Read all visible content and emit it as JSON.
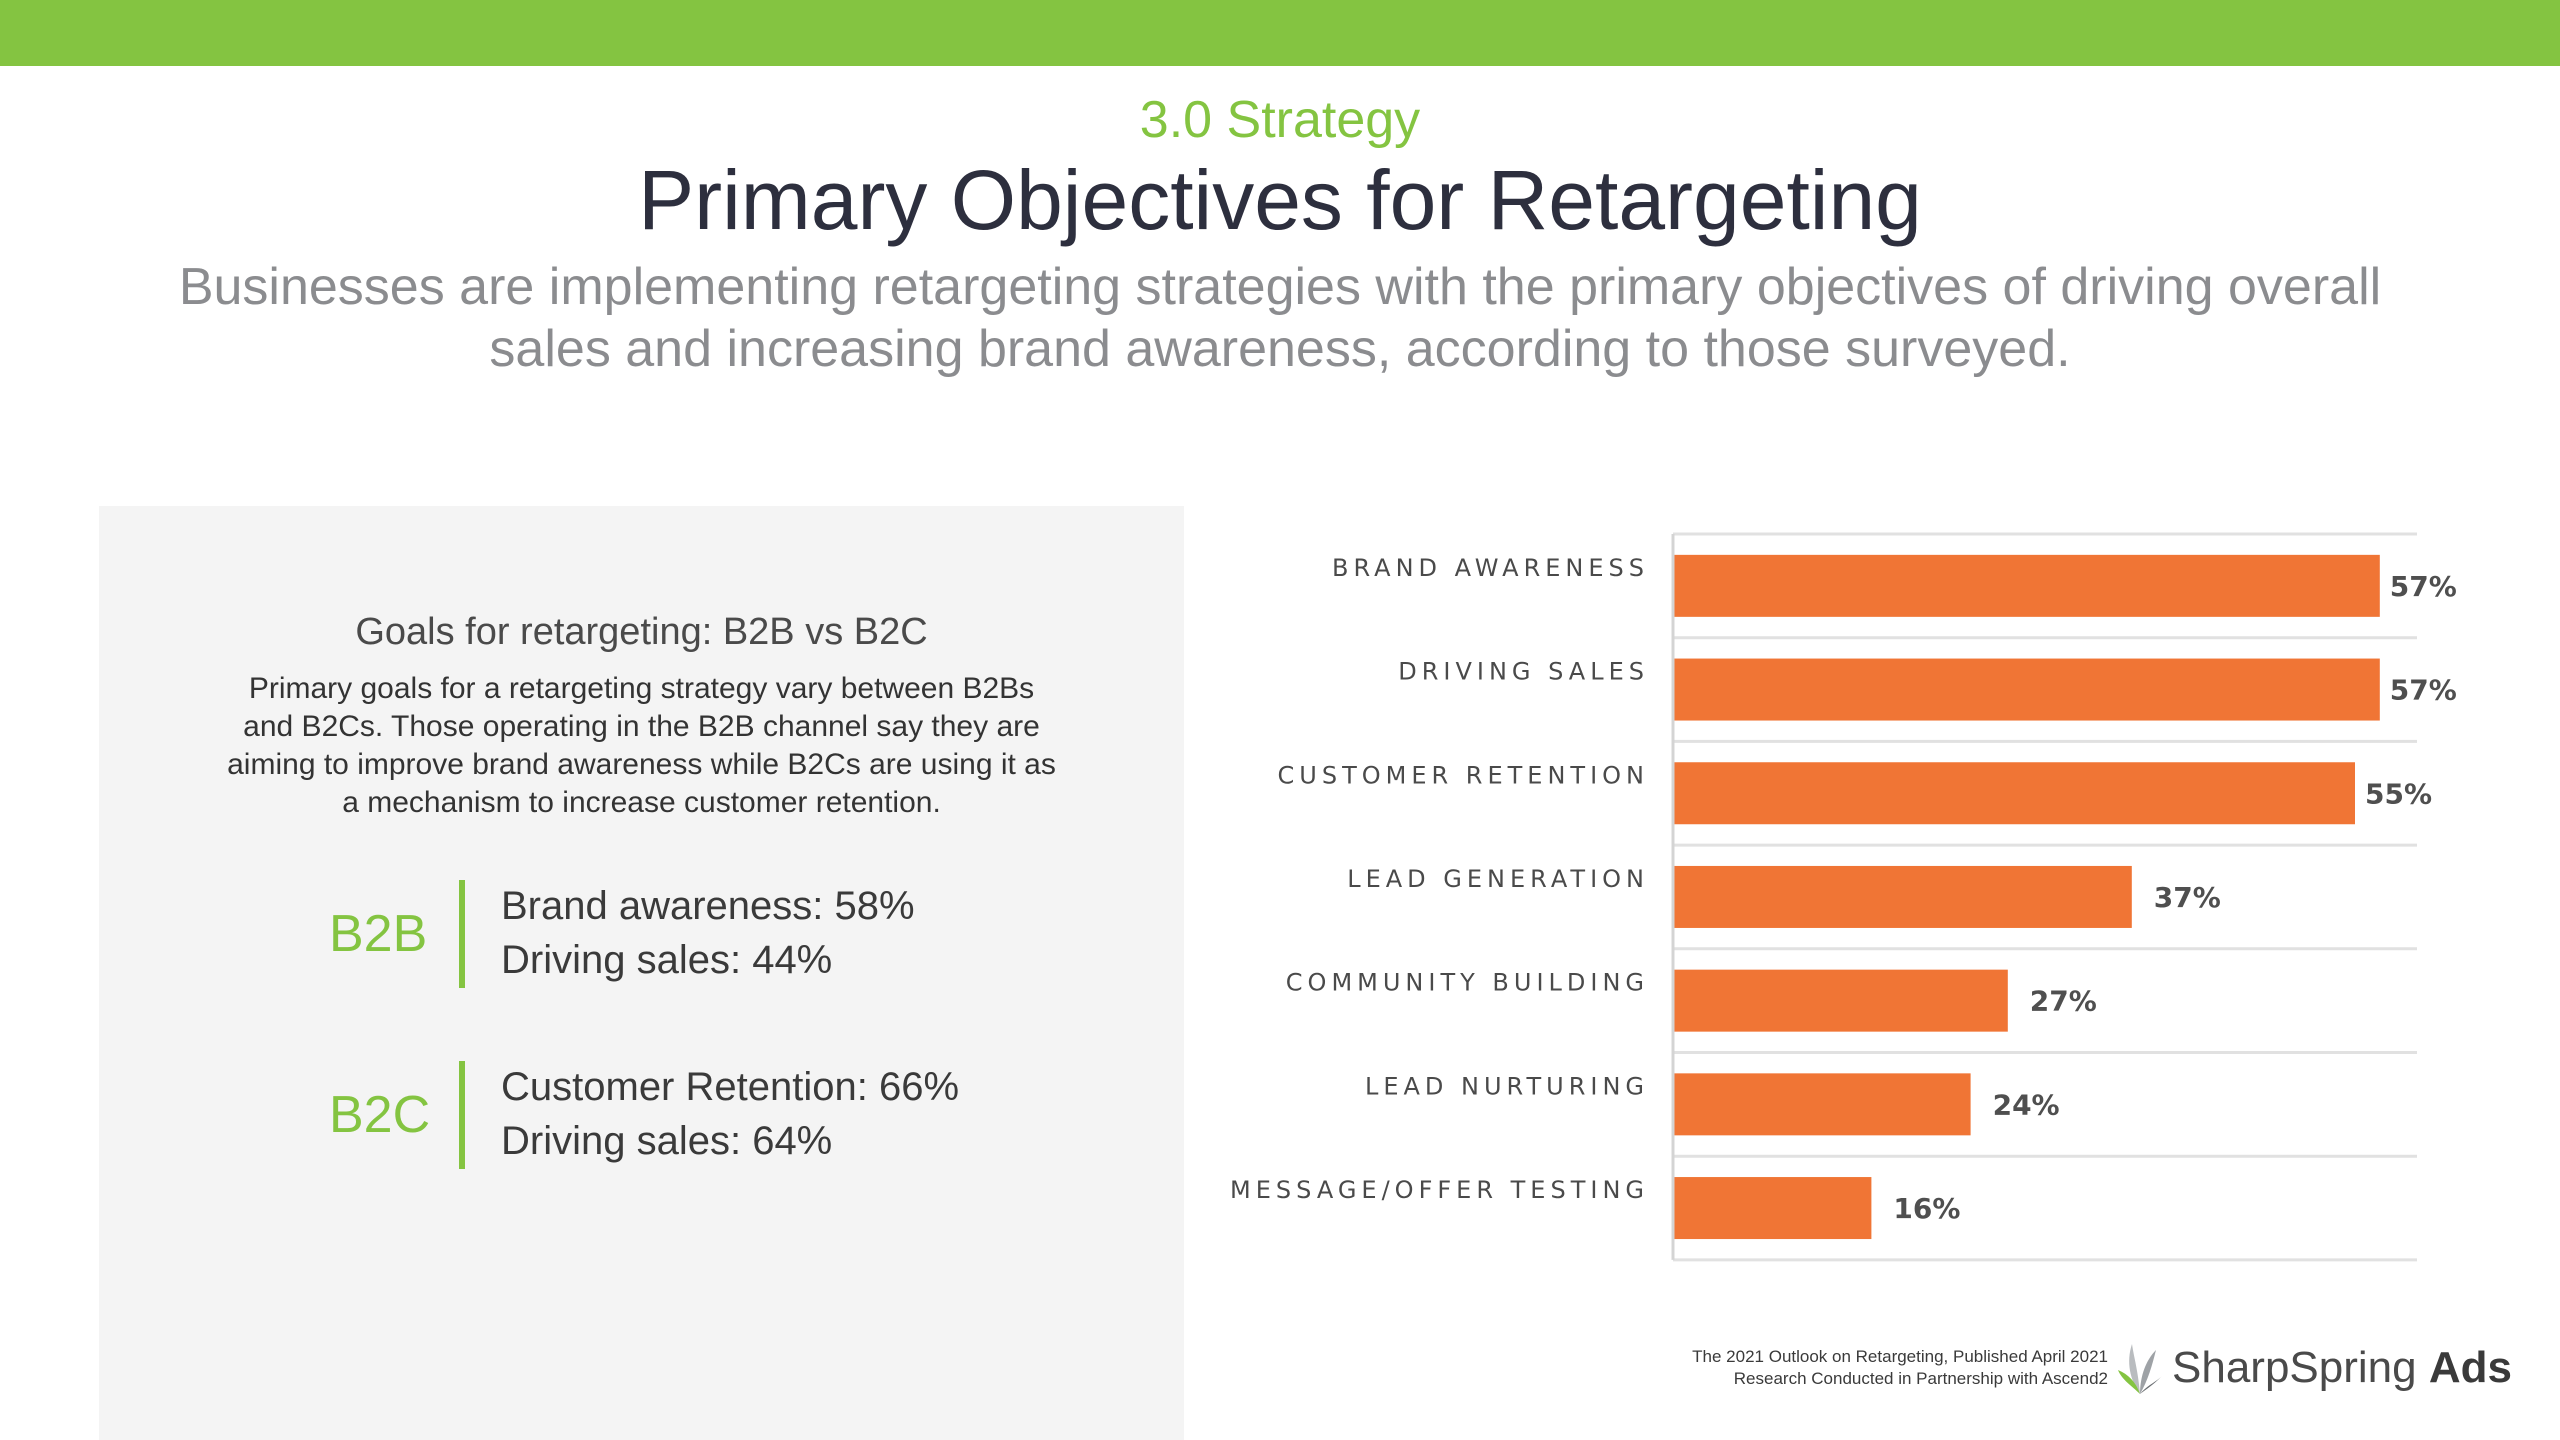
{
  "header": {
    "kicker": "3.0 Strategy",
    "title": "Primary Objectives for Retargeting",
    "subtitle_line1": "Businesses are implementing retargeting strategies with the primary objectives of driving overall",
    "subtitle_line2": "sales and increasing brand awareness, according to those surveyed."
  },
  "panel": {
    "heading": "Goals for retargeting: B2B vs B2C",
    "body_lines": [
      "Primary goals for a retargeting strategy vary between B2Bs",
      "and B2Cs. Those operating in the B2B channel say they are",
      "aiming to improve brand awareness while B2Cs are using it as",
      "a mechanism to increase customer retention."
    ],
    "groups": [
      {
        "label": "B2B",
        "stat1": "Brand awareness: 58%",
        "stat2": "Driving sales: 44%"
      },
      {
        "label": "B2C",
        "stat1": "Customer Retention: 66%",
        "stat2": "Driving sales: 64%"
      }
    ]
  },
  "colors": {
    "accent_green": "#84c441",
    "bar_orange": "#f07535"
  },
  "chart_data": {
    "type": "bar",
    "orientation": "horizontal",
    "categories": [
      "BRAND AWARENESS",
      "DRIVING SALES",
      "CUSTOMER RETENTION",
      "LEAD GENERATION",
      "COMMUNITY BUILDING",
      "LEAD NURTURING",
      "MESSAGE/OFFER TESTING"
    ],
    "values": [
      57,
      57,
      55,
      37,
      27,
      24,
      16
    ],
    "value_labels": [
      "57%",
      "57%",
      "55%",
      "37%",
      "27%",
      "24%",
      "16%"
    ],
    "unit": "%",
    "xlim": [
      0,
      60
    ],
    "grid": true,
    "title": "",
    "xlabel": "",
    "ylabel": ""
  },
  "footer": {
    "line1": "The 2021 Outlook on Retargeting, Published April 2021",
    "line2": "Research Conducted in Partnership with Ascend2",
    "logo_text": "SharpSpring",
    "logo_bold": "Ads"
  }
}
